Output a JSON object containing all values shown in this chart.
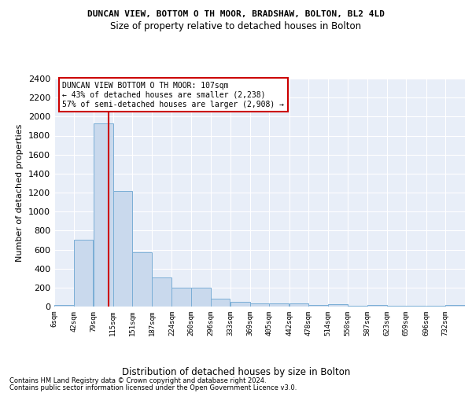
{
  "title": "DUNCAN VIEW, BOTTOM O TH MOOR, BRADSHAW, BOLTON, BL2 4LD",
  "subtitle": "Size of property relative to detached houses in Bolton",
  "xlabel": "Distribution of detached houses by size in Bolton",
  "ylabel": "Number of detached properties",
  "bar_color": "#c9d9ed",
  "bar_edge_color": "#7aaed6",
  "background_color": "#e8eef8",
  "grid_color": "#ffffff",
  "annotation_box_color": "#cc0000",
  "property_line_color": "#cc0000",
  "property_size": 107,
  "annotation_text": "DUNCAN VIEW BOTTOM O TH MOOR: 107sqm\n← 43% of detached houses are smaller (2,238)\n57% of semi-detached houses are larger (2,908) →",
  "footer_line1": "Contains HM Land Registry data © Crown copyright and database right 2024.",
  "footer_line2": "Contains public sector information licensed under the Open Government Licence v3.0.",
  "bin_labels": [
    "6sqm",
    "42sqm",
    "79sqm",
    "115sqm",
    "151sqm",
    "187sqm",
    "224sqm",
    "260sqm",
    "296sqm",
    "333sqm",
    "369sqm",
    "405sqm",
    "442sqm",
    "478sqm",
    "514sqm",
    "550sqm",
    "587sqm",
    "623sqm",
    "659sqm",
    "696sqm",
    "732sqm"
  ],
  "bin_edges": [
    6,
    42,
    79,
    115,
    151,
    187,
    224,
    260,
    296,
    333,
    369,
    405,
    442,
    478,
    514,
    550,
    587,
    623,
    659,
    696,
    732
  ],
  "bar_heights": [
    18,
    700,
    1930,
    1220,
    570,
    305,
    200,
    200,
    80,
    47,
    35,
    35,
    30,
    20,
    25,
    5,
    20,
    5,
    5,
    5,
    20
  ],
  "ylim": [
    0,
    2400
  ],
  "yticks": [
    0,
    200,
    400,
    600,
    800,
    1000,
    1200,
    1400,
    1600,
    1800,
    2000,
    2200,
    2400
  ]
}
